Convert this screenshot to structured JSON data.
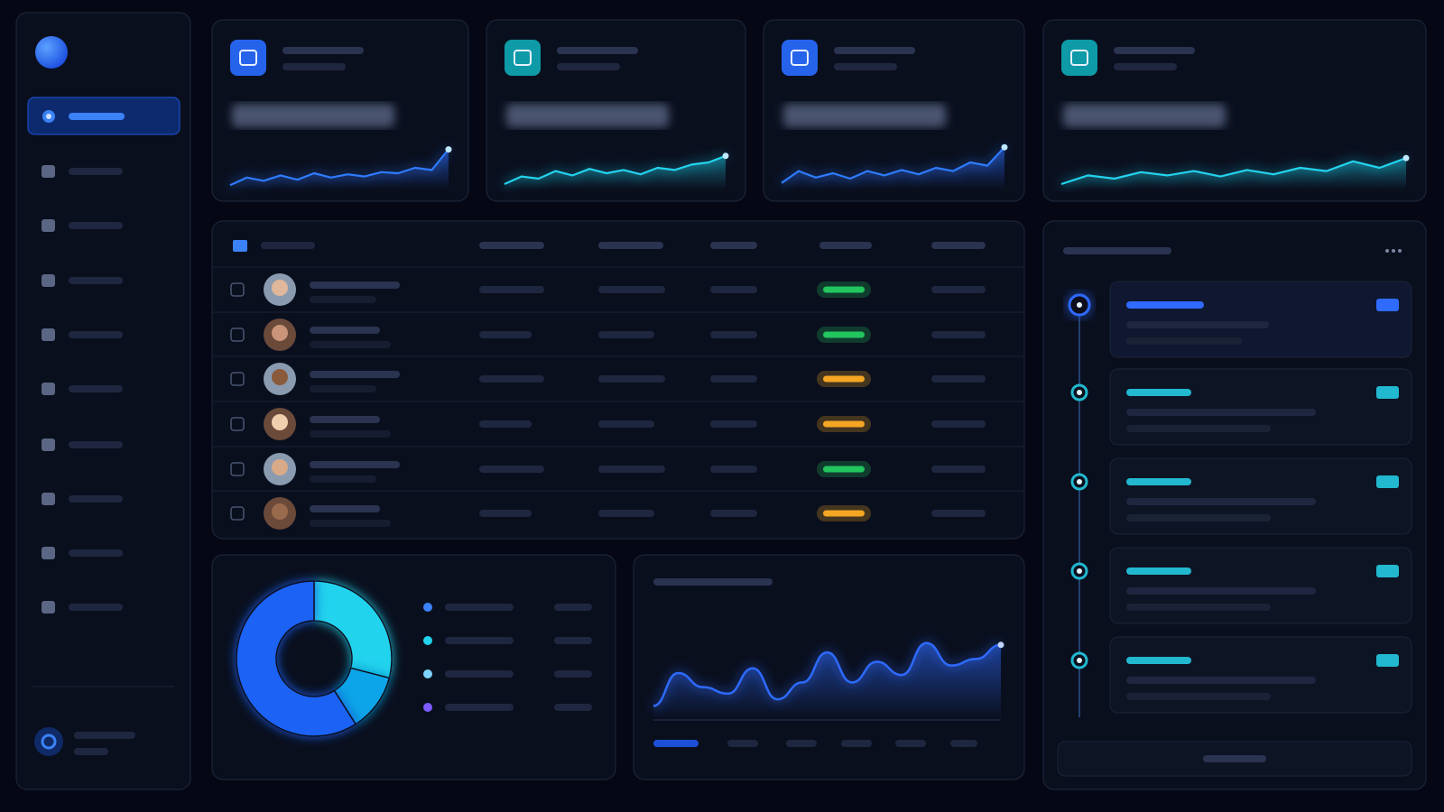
{
  "kpi_sparklines": [
    {
      "color": "#2f7bff",
      "ylim": [
        0,
        100
      ],
      "values": [
        8,
        22,
        16,
        26,
        18,
        30,
        22,
        28,
        24,
        32,
        30,
        40,
        36,
        74
      ]
    },
    {
      "color": "#22d3ee",
      "ylim": [
        0,
        100
      ],
      "values": [
        10,
        24,
        20,
        34,
        26,
        38,
        30,
        36,
        28,
        40,
        36,
        46,
        50,
        62
      ]
    },
    {
      "color": "#2f7bff",
      "ylim": [
        0,
        100
      ],
      "values": [
        12,
        34,
        22,
        30,
        20,
        34,
        26,
        36,
        28,
        40,
        34,
        50,
        44,
        78
      ]
    },
    {
      "color": "#22d3ee",
      "ylim": [
        0,
        100
      ],
      "values": [
        10,
        26,
        20,
        32,
        26,
        34,
        24,
        36,
        28,
        40,
        34,
        52,
        40,
        58
      ]
    }
  ],
  "table": {
    "status_colors": [
      "#22c55e",
      "#22c55e",
      "#f5a623",
      "#f5a623",
      "#22c55e",
      "#f5a623"
    ]
  },
  "donut": {
    "values": [
      29,
      12,
      59
    ],
    "colors": [
      "#22d3ee",
      "#0ea5e9",
      "#1d63f5"
    ]
  },
  "area_chart": {
    "color": "#2f6bff",
    "ylim": [
      0,
      100
    ],
    "values": [
      15,
      50,
      35,
      28,
      55,
      22,
      40,
      72,
      40,
      62,
      48,
      82,
      58,
      65,
      80
    ]
  }
}
